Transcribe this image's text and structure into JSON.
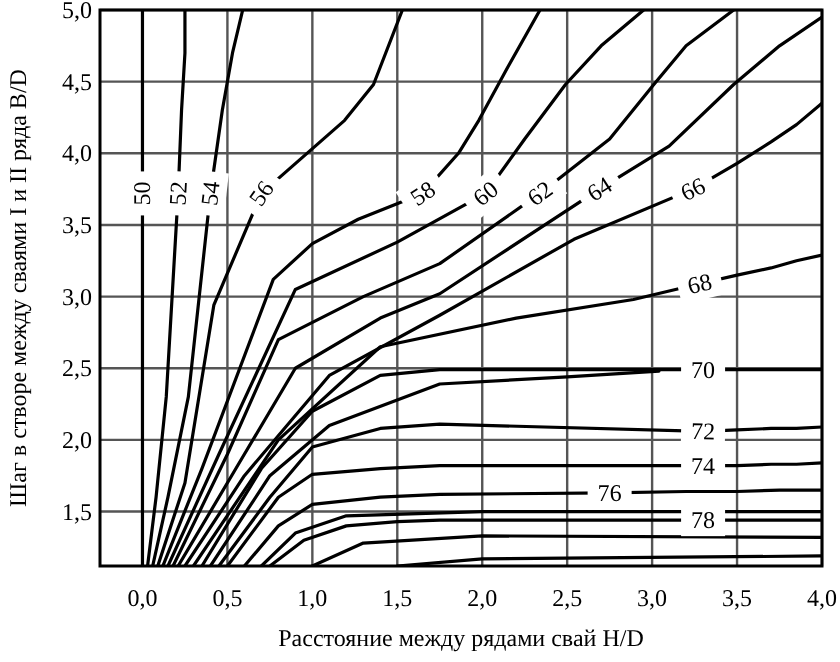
{
  "chart_data": {
    "type": "line",
    "xlabel": "Расстояние между рядами свай H/D",
    "ylabel": "Шаг в створе между сваями I и II ряда B/D",
    "xlim": [
      -0.25,
      4.0
    ],
    "ylim": [
      1.12,
      5.0
    ],
    "xticks": [
      {
        "value": 0,
        "label": "0,0"
      },
      {
        "value": 0.5,
        "label": "0,5"
      },
      {
        "value": 1,
        "label": "1,0"
      },
      {
        "value": 1.5,
        "label": "1,5"
      },
      {
        "value": 2,
        "label": "2,0"
      },
      {
        "value": 2.5,
        "label": "2,5"
      },
      {
        "value": 3,
        "label": "3,0"
      },
      {
        "value": 3.5,
        "label": "3,5"
      },
      {
        "value": 4,
        "label": "4,0"
      }
    ],
    "yticks": [
      {
        "value": 1.5,
        "label": "1,5"
      },
      {
        "value": 2,
        "label": "2,0"
      },
      {
        "value": 2.5,
        "label": "2,5"
      },
      {
        "value": 3,
        "label": "3,0"
      },
      {
        "value": 3.5,
        "label": "3,5"
      },
      {
        "value": 4,
        "label": "4,0"
      },
      {
        "value": 4.5,
        "label": "4,5"
      },
      {
        "value": 5,
        "label": "5,0"
      }
    ],
    "grid": true,
    "line_style": "solid",
    "marker": "none",
    "series": [
      {
        "name": "50",
        "color": "#000000",
        "x": [
          0,
          0,
          0
        ],
        "values": [
          1.12,
          3.72,
          5.0
        ]
      },
      {
        "name": "52",
        "color": "#000000",
        "x": [
          0.03,
          0.08,
          0.14,
          0.21,
          0.23,
          0.25,
          0.25
        ],
        "values": [
          1.12,
          1.6,
          2.3,
          3.72,
          4.3,
          4.7,
          5.0
        ]
      },
      {
        "name": "54",
        "color": "#000000",
        "x": [
          0.06,
          0.15,
          0.27,
          0.4,
          0.47,
          0.53,
          0.59
        ],
        "values": [
          1.12,
          1.6,
          2.3,
          3.72,
          4.3,
          4.7,
          5.0
        ]
      },
      {
        "name": "56",
        "color": "#000000",
        "x": [
          0.09,
          0.25,
          0.42,
          0.7,
          1.19,
          1.36,
          1.53
        ],
        "values": [
          1.12,
          1.7,
          2.94,
          3.72,
          4.23,
          4.48,
          5.0
        ]
      },
      {
        "name": "58",
        "color": "#000000",
        "x": [
          0.12,
          0.35,
          0.77,
          1.0,
          1.27,
          1.65,
          1.86,
          1.98,
          2.15,
          2.34
        ],
        "values": [
          1.12,
          1.8,
          3.12,
          3.37,
          3.54,
          3.72,
          4.0,
          4.23,
          4.6,
          5.0
        ]
      },
      {
        "name": "60",
        "color": "#000000",
        "x": [
          0.15,
          0.45,
          0.9,
          1.5,
          2.02,
          2.25,
          2.49,
          2.7,
          2.95
        ],
        "values": [
          1.12,
          1.9,
          3.05,
          3.38,
          3.72,
          4.1,
          4.48,
          4.75,
          5.0
        ]
      },
      {
        "name": "62",
        "color": "#000000",
        "x": [
          0.18,
          0.5,
          0.8,
          1.3,
          1.75,
          2.34,
          2.75,
          3.01,
          3.2,
          3.48
        ],
        "values": [
          1.12,
          1.9,
          2.7,
          3.0,
          3.23,
          3.72,
          4.1,
          4.48,
          4.75,
          5.0
        ]
      },
      {
        "name": "64",
        "color": "#000000",
        "x": [
          0.21,
          0.55,
          0.9,
          1.4,
          1.75,
          2.69,
          3.1,
          3.48,
          3.75,
          4.0
        ],
        "values": [
          1.12,
          1.8,
          2.5,
          2.85,
          3.02,
          3.75,
          4.05,
          4.48,
          4.75,
          4.95
        ]
      },
      {
        "name": "66",
        "color": "#000000",
        "x": [
          0.25,
          0.6,
          1.1,
          1.75,
          2.54,
          3.24,
          3.5,
          3.7,
          3.85,
          4.0
        ],
        "values": [
          1.12,
          1.75,
          2.45,
          2.87,
          3.4,
          3.75,
          3.93,
          4.08,
          4.2,
          4.35
        ]
      },
      {
        "name": "68",
        "color": "#000000",
        "x": [
          0.3,
          0.8,
          1.4,
          2.2,
          2.89,
          3.28,
          3.5,
          3.7,
          3.85,
          4.0
        ],
        "values": [
          1.12,
          2.0,
          2.65,
          2.85,
          2.98,
          3.09,
          3.15,
          3.2,
          3.25,
          3.29
        ]
      },
      {
        "color": "#000000",
        "x": [
          0.4,
          0.75,
          1.1,
          1.75,
          2.5,
          3.04
        ],
        "values": [
          1.12,
          1.75,
          2.1,
          2.39,
          2.44,
          2.48
        ]
      },
      {
        "name": "70",
        "color": "#000000",
        "x": [
          0.35,
          0.7,
          1.0,
          1.4,
          1.75,
          3.3,
          3.5,
          3.7,
          3.85,
          4.0
        ],
        "values": [
          1.12,
          1.8,
          2.2,
          2.45,
          2.49,
          2.49,
          2.49,
          2.49,
          2.49,
          2.49
        ]
      },
      {
        "name": "72",
        "color": "#000000",
        "x": [
          0.45,
          0.75,
          1.0,
          1.4,
          1.75,
          3.3,
          3.5,
          3.7,
          3.85,
          4.0
        ],
        "values": [
          1.12,
          1.6,
          1.95,
          2.08,
          2.11,
          2.06,
          2.07,
          2.08,
          2.08,
          2.09
        ]
      },
      {
        "name": "74",
        "color": "#000000",
        "x": [
          0.5,
          0.8,
          1.0,
          1.4,
          1.75,
          3.3,
          3.5,
          3.7,
          3.85,
          4.0
        ],
        "values": [
          1.12,
          1.6,
          1.76,
          1.8,
          1.82,
          1.82,
          1.82,
          1.83,
          1.83,
          1.84
        ]
      },
      {
        "name": "76",
        "color": "#000000",
        "x": [
          0.6,
          0.8,
          1.0,
          1.4,
          1.75,
          2.75,
          3.2,
          3.5,
          3.75,
          4.0
        ],
        "values": [
          1.12,
          1.4,
          1.55,
          1.6,
          1.62,
          1.63,
          1.64,
          1.64,
          1.65,
          1.65
        ]
      },
      {
        "color": "#000000",
        "x": [
          0.7,
          0.9,
          1.2,
          2.0,
          4.0
        ],
        "values": [
          1.12,
          1.35,
          1.47,
          1.5,
          1.5
        ]
      },
      {
        "name": "78",
        "color": "#000000",
        "x": [
          0.75,
          0.95,
          1.2,
          1.5,
          1.75,
          3.3,
          3.5,
          3.7,
          3.85,
          4.0
        ],
        "values": [
          1.12,
          1.3,
          1.4,
          1.43,
          1.44,
          1.44,
          1.44,
          1.44,
          1.44,
          1.44
        ]
      },
      {
        "color": "#000000",
        "x": [
          1.0,
          1.3,
          2.0,
          4.0
        ],
        "values": [
          1.12,
          1.28,
          1.33,
          1.32
        ]
      },
      {
        "color": "#000000",
        "x": [
          1.5,
          2.0,
          4.0
        ],
        "values": [
          1.12,
          1.17,
          1.19
        ]
      }
    ]
  }
}
